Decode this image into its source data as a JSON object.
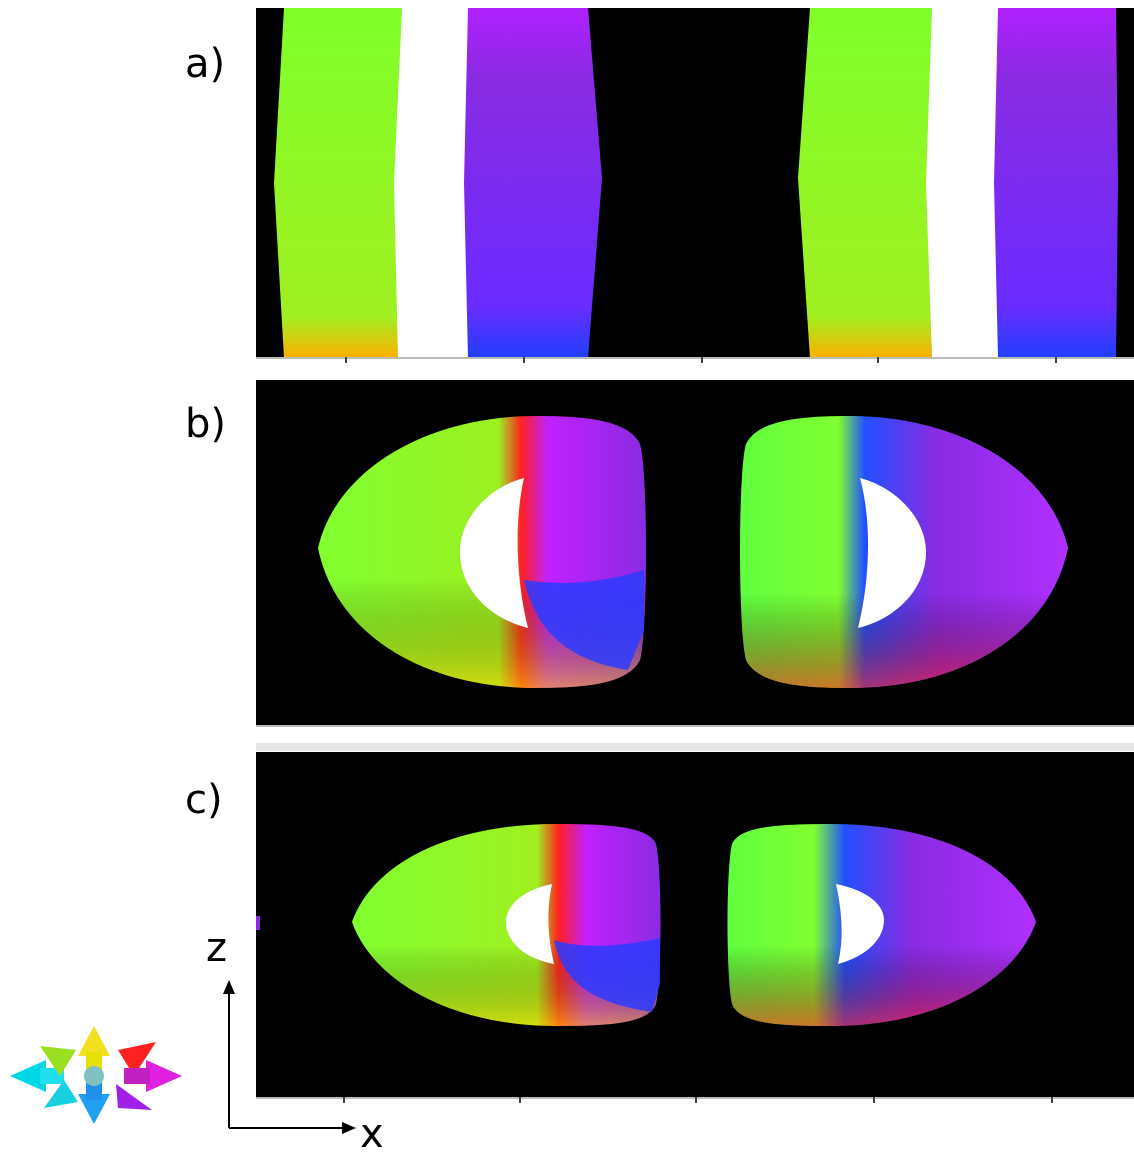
{
  "figure": {
    "panels": [
      {
        "label": "a)"
      },
      {
        "label": "b)"
      },
      {
        "label": "c)"
      }
    ],
    "axes": {
      "vertical_label": "z",
      "horizontal_label": "x"
    },
    "colors": {
      "background": "#000000",
      "core": "#ffffff",
      "green": "#7fff2a",
      "purple": "#8a2be2",
      "red": "#ff1a1a",
      "blue": "#2a3cff",
      "cyan": "#00e5ff",
      "yellow": "#ffe600",
      "magenta": "#ff22ff"
    },
    "legend_icon": "direction-color-wheel-icon"
  }
}
